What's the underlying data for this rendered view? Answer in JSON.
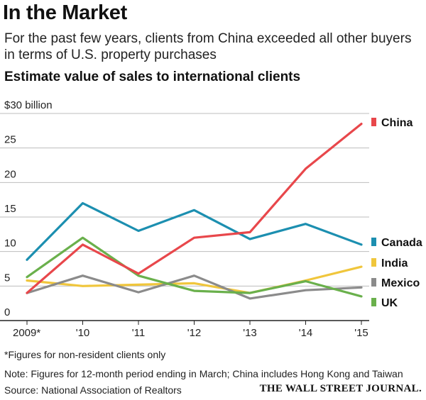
{
  "title": "In the Market",
  "subtitle": "For the past few years, clients from China exceeded all other buyers in terms of U.S. property purchases",
  "chart_heading": "Estimate value of sales to international clients",
  "footnotes": {
    "asterisk": "*Figures for non-resident clients only",
    "note": "Note: Figures for 12-month period ending in March;  China includes Hong Kong and Taiwan"
  },
  "source": "Source: National Association of Realtors",
  "credit": "THE WALL STREET JOURNAL.",
  "chart_data": {
    "type": "line",
    "title": "Estimate value of sales to international clients",
    "x": [
      "2009*",
      "'10",
      "'11",
      "'12",
      "'13",
      "'14",
      "'15"
    ],
    "ylim": [
      0,
      30
    ],
    "y_ticks": [
      {
        "value": 30,
        "label": "$30 billion"
      },
      {
        "value": 25,
        "label": "25"
      },
      {
        "value": 20,
        "label": "20"
      },
      {
        "value": 15,
        "label": "15"
      },
      {
        "value": 10,
        "label": "10"
      },
      {
        "value": 5,
        "label": "5"
      },
      {
        "value": 0,
        "label": "0"
      }
    ],
    "grid": true,
    "legend_position": "right, at line ends",
    "series": [
      {
        "name": "China",
        "color": "#e8474b",
        "values": [
          4.0,
          11.0,
          6.8,
          12.0,
          12.8,
          22.0,
          28.5
        ]
      },
      {
        "name": "Canada",
        "color": "#1c8fb0",
        "values": [
          8.8,
          17.0,
          13.0,
          16.0,
          11.8,
          14.0,
          11.0
        ]
      },
      {
        "name": "India",
        "color": "#f0c63c",
        "values": [
          5.8,
          5.0,
          5.2,
          5.4,
          4.0,
          5.8,
          7.8
        ]
      },
      {
        "name": "Mexico",
        "color": "#8b8b8b",
        "values": [
          4.0,
          6.5,
          4.1,
          6.5,
          3.2,
          4.4,
          4.8
        ]
      },
      {
        "name": "UK",
        "color": "#6ab04c",
        "values": [
          6.3,
          12.0,
          6.5,
          4.3,
          4.0,
          5.7,
          3.5
        ]
      }
    ]
  }
}
